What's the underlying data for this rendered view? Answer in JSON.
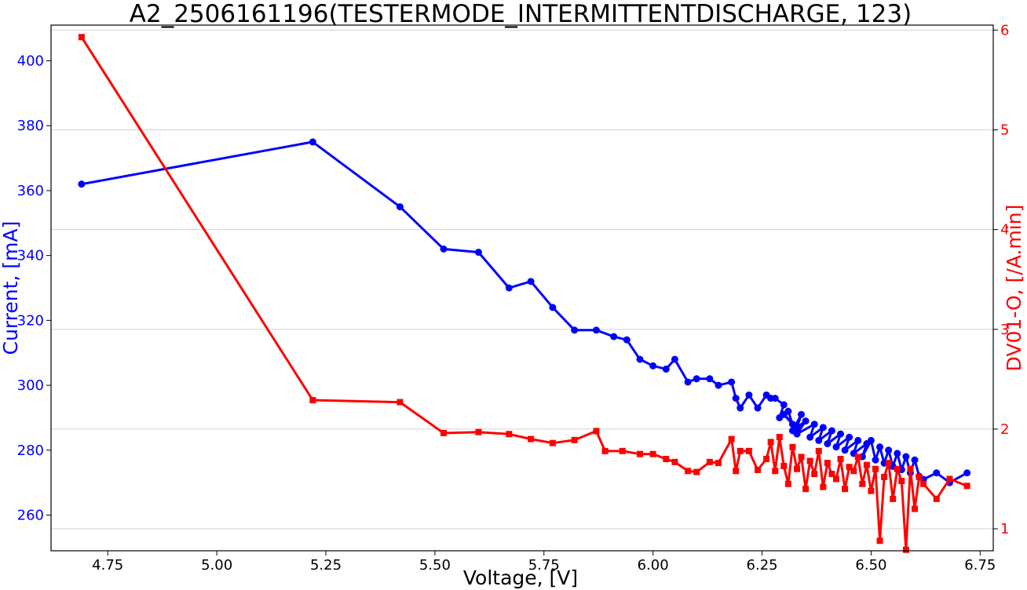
{
  "chart_data": {
    "type": "line",
    "title": "A2_2506161196(TESTERMODE_INTERMITTENTDISCHARGE, 123)",
    "xlabel": "Voltage, [V]",
    "ylabel_left": "Current, [mA]",
    "ylabel_right": "DV01-O, [/A.min]",
    "xlim": [
      4.62,
      6.78
    ],
    "ylim_left": [
      249,
      411
    ],
    "ylim_right": [
      0.78,
      6.05
    ],
    "x_ticks": [
      "4.75",
      "5.00",
      "5.25",
      "5.50",
      "5.75",
      "6.00",
      "6.25",
      "6.50",
      "6.75"
    ],
    "x_tick_values": [
      4.75,
      5.0,
      5.25,
      5.5,
      5.75,
      6.0,
      6.25,
      6.5,
      6.75
    ],
    "y_left_ticks": [
      "260",
      "280",
      "300",
      "320",
      "340",
      "360",
      "380",
      "400"
    ],
    "y_left_tick_values": [
      260,
      280,
      300,
      320,
      340,
      360,
      380,
      400
    ],
    "y_right_ticks": [
      "1",
      "2",
      "3",
      "4",
      "5",
      "6"
    ],
    "y_right_tick_values": [
      1,
      2,
      3,
      4,
      5,
      6
    ],
    "grid": "horizontal (right axis ticks)",
    "colors": {
      "current": "#0000ff",
      "dv": "#ff0000",
      "grid": "#d3d3d3"
    },
    "series": [
      {
        "axis": "left",
        "marker": "circle",
        "color": "#0000ff",
        "x": [
          4.69,
          5.22,
          5.42,
          5.52,
          5.6,
          5.67,
          5.72,
          5.77,
          5.82,
          5.87,
          5.91,
          5.94,
          5.97,
          6.0,
          6.03,
          6.05,
          6.08,
          6.1,
          6.13,
          6.15,
          6.18,
          6.19,
          6.2,
          6.22,
          6.24,
          6.26,
          6.27,
          6.28,
          6.3,
          6.29,
          6.31,
          6.32,
          6.3,
          6.33,
          6.34,
          6.32,
          6.35,
          6.33,
          6.37,
          6.36,
          6.39,
          6.38,
          6.41,
          6.4,
          6.43,
          6.42,
          6.45,
          6.44,
          6.47,
          6.46,
          6.49,
          6.48,
          6.5,
          6.51,
          6.52,
          6.53,
          6.54,
          6.55,
          6.56,
          6.57,
          6.58,
          6.59,
          6.6,
          6.61,
          6.62,
          6.65,
          6.68,
          6.72
        ],
        "y": [
          362,
          375,
          355,
          342,
          341,
          330,
          332,
          324,
          317,
          317,
          315,
          314,
          308,
          306,
          305,
          308,
          301,
          302,
          302,
          300,
          301,
          296,
          293,
          297,
          293,
          297,
          296,
          296,
          294,
          290,
          292,
          288,
          291,
          287,
          291,
          286,
          289,
          285,
          288,
          284,
          287,
          283,
          286,
          282,
          285,
          281,
          284,
          280,
          283,
          279,
          282,
          278,
          283,
          277,
          281,
          276,
          280,
          275,
          279,
          274,
          278,
          273,
          277,
          272,
          271,
          273,
          270,
          273
        ]
      },
      {
        "axis": "right",
        "marker": "square",
        "color": "#ff0000",
        "x": [
          4.69,
          5.22,
          5.42,
          5.52,
          5.6,
          5.67,
          5.72,
          5.77,
          5.82,
          5.87,
          5.89,
          5.93,
          5.97,
          6.0,
          6.03,
          6.05,
          6.08,
          6.1,
          6.13,
          6.15,
          6.18,
          6.19,
          6.2,
          6.22,
          6.24,
          6.26,
          6.27,
          6.28,
          6.29,
          6.3,
          6.31,
          6.32,
          6.33,
          6.34,
          6.35,
          6.36,
          6.37,
          6.38,
          6.39,
          6.4,
          6.41,
          6.42,
          6.43,
          6.44,
          6.45,
          6.46,
          6.47,
          6.48,
          6.49,
          6.5,
          6.51,
          6.52,
          6.53,
          6.54,
          6.55,
          6.56,
          6.57,
          6.58,
          6.59,
          6.6,
          6.61,
          6.62,
          6.65,
          6.68,
          6.72
        ],
        "y": [
          5.93,
          2.29,
          2.27,
          1.96,
          1.97,
          1.95,
          1.9,
          1.86,
          1.89,
          1.98,
          1.78,
          1.78,
          1.75,
          1.75,
          1.7,
          1.67,
          1.58,
          1.57,
          1.67,
          1.66,
          1.9,
          1.58,
          1.78,
          1.78,
          1.59,
          1.7,
          1.87,
          1.58,
          1.92,
          1.63,
          1.45,
          1.82,
          1.6,
          1.72,
          1.4,
          1.68,
          1.55,
          1.78,
          1.42,
          1.66,
          1.55,
          1.5,
          1.7,
          1.4,
          1.62,
          1.58,
          1.72,
          1.45,
          1.64,
          1.38,
          1.6,
          0.88,
          1.52,
          1.66,
          1.3,
          1.6,
          1.48,
          0.79,
          1.6,
          1.2,
          1.52,
          1.45,
          1.3,
          1.5,
          1.43
        ]
      }
    ]
  }
}
